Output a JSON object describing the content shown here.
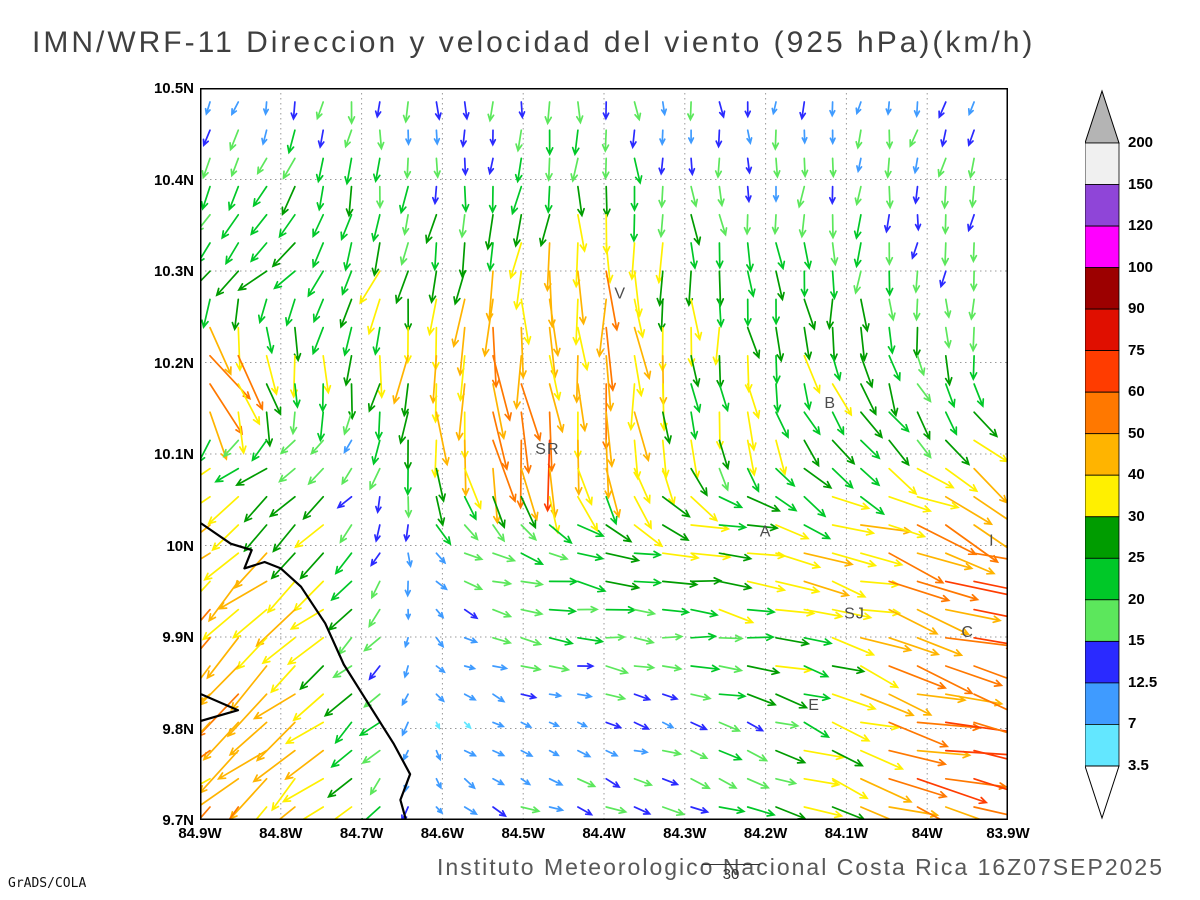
{
  "title": "IMN/WRF-11 Direccion y velocidad del viento (925 hPa)(km/h)",
  "footer": {
    "caption": "Instituto Meteorologico Nacional Costa Rica 16Z07SEP2025",
    "credit": "GrADS/COLA",
    "reference_vector": {
      "label": "30",
      "value": 30
    }
  },
  "chart_data": {
    "type": "vector_field",
    "description": "Wind direction and speed vectors at 925 hPa over central Costa Rica, colored by speed in km/h",
    "lon_range": [
      -84.9,
      -83.9
    ],
    "lat_range": [
      9.7,
      10.5
    ],
    "lon_ticks": [
      "84.9W",
      "84.8W",
      "84.7W",
      "84.6W",
      "84.5W",
      "84.4W",
      "84.3W",
      "84.2W",
      "84.1W",
      "84W",
      "83.9W"
    ],
    "lat_ticks": [
      "10.5N",
      "10.4N",
      "10.3N",
      "10.2N",
      "10.1N",
      "10N",
      "9.9N",
      "9.8N",
      "9.7N"
    ],
    "grid_dotted": true,
    "legend": {
      "unit": "km/h",
      "thresholds_ascending": [
        3.5,
        7,
        12.5,
        15,
        20,
        25,
        30,
        40,
        50,
        60,
        75,
        90,
        100,
        120,
        150,
        200
      ],
      "band_colors_ascending": [
        "#63e7ff",
        "#3f9bff",
        "#2a2aff",
        "#5ce75c",
        "#00c828",
        "#009c00",
        "#fff000",
        "#ffb400",
        "#ff7800",
        "#ff3c00",
        "#e00f00",
        "#9c0000",
        "#ff00ff",
        "#8f45d8",
        "#f0f0f0"
      ],
      "above_color": "#b4b4b4",
      "below_color": "#ffffff"
    },
    "stations": [
      {
        "label": "V",
        "lon": -84.38,
        "lat": 10.27
      },
      {
        "label": "B",
        "lon": -84.12,
        "lat": 10.15
      },
      {
        "label": "SR",
        "lon": -84.47,
        "lat": 10.1
      },
      {
        "label": "A",
        "lon": -84.2,
        "lat": 10.01
      },
      {
        "label": "SJ",
        "lon": -84.09,
        "lat": 9.92
      },
      {
        "label": "C",
        "lon": -83.95,
        "lat": 9.9
      },
      {
        "label": "E",
        "lon": -84.14,
        "lat": 9.82
      },
      {
        "label": "I",
        "lon": -83.92,
        "lat": 10.0
      }
    ],
    "coastline": [
      [
        [
          -84.9,
          10.025
        ],
        [
          -84.862,
          10.002
        ],
        [
          -84.836,
          9.995
        ],
        [
          -84.845,
          9.975
        ],
        [
          -84.82,
          9.982
        ],
        [
          -84.8,
          9.975
        ],
        [
          -84.775,
          9.955
        ],
        [
          -84.745,
          9.915
        ],
        [
          -84.722,
          9.87
        ],
        [
          -84.695,
          9.832
        ],
        [
          -84.66,
          9.783
        ],
        [
          -84.64,
          9.75
        ],
        [
          -84.652,
          9.722
        ],
        [
          -84.645,
          9.7
        ]
      ],
      [
        [
          -84.9,
          9.838
        ],
        [
          -84.853,
          9.82
        ],
        [
          -84.9,
          9.808
        ]
      ]
    ],
    "wind_grid": {
      "lons": [
        -84.9,
        -84.8,
        -84.7,
        -84.6,
        -84.5,
        -84.4,
        -84.3,
        -84.2,
        -84.1,
        -84.0,
        -83.9
      ],
      "lats": [
        10.5,
        10.4,
        10.3,
        10.2,
        10.1,
        10.0,
        9.9,
        9.8,
        9.7
      ],
      "u_kmh": [
        [
          -3,
          -2,
          0,
          0,
          -2,
          0,
          2,
          0,
          -2,
          -3,
          -4
        ],
        [
          -8,
          -10,
          -4,
          -2,
          -2,
          0,
          2,
          0,
          -2,
          -3,
          -4
        ],
        [
          -15,
          -18,
          -10,
          -5,
          -3,
          2,
          3,
          2,
          0,
          -2,
          -3
        ],
        [
          35,
          10,
          -5,
          0,
          5,
          5,
          3,
          5,
          8,
          5,
          0
        ],
        [
          -20,
          -15,
          -8,
          5,
          8,
          5,
          8,
          10,
          15,
          20,
          25
        ],
        [
          -30,
          -28,
          -10,
          10,
          18,
          25,
          30,
          32,
          35,
          50,
          60
        ],
        [
          -35,
          -30,
          -15,
          8,
          15,
          18,
          22,
          25,
          30,
          48,
          55
        ],
        [
          -38,
          -32,
          -18,
          5,
          8,
          10,
          12,
          18,
          35,
          55,
          60
        ],
        [
          -35,
          -30,
          -20,
          8,
          12,
          15,
          15,
          20,
          30,
          45,
          50
        ]
      ],
      "v_kmh": [
        [
          -12,
          -12,
          -14,
          -12,
          -14,
          -15,
          -12,
          -12,
          -12,
          -13,
          -14
        ],
        [
          -15,
          -18,
          -20,
          -16,
          -18,
          -20,
          -16,
          -15,
          -14,
          -15,
          -15
        ],
        [
          -15,
          -15,
          -22,
          -30,
          -38,
          -42,
          -30,
          -25,
          -22,
          -18,
          -16
        ],
        [
          -55,
          -30,
          -28,
          -45,
          -50,
          -45,
          -30,
          -28,
          -25,
          -20,
          -18
        ],
        [
          -20,
          -12,
          -10,
          -35,
          -55,
          -45,
          -28,
          -22,
          -18,
          -15,
          -20
        ],
        [
          -28,
          -25,
          -15,
          -8,
          -5,
          -3,
          -2,
          -5,
          -8,
          -20,
          -25
        ],
        [
          -30,
          -28,
          -12,
          -5,
          -3,
          -2,
          -3,
          -5,
          -10,
          -15,
          -18
        ],
        [
          -32,
          -30,
          -15,
          -5,
          -3,
          -3,
          -4,
          -6,
          -12,
          -15,
          -18
        ],
        [
          -30,
          -28,
          -18,
          -6,
          -5,
          -6,
          -5,
          -8,
          -12,
          -15,
          -15
        ]
      ]
    }
  }
}
